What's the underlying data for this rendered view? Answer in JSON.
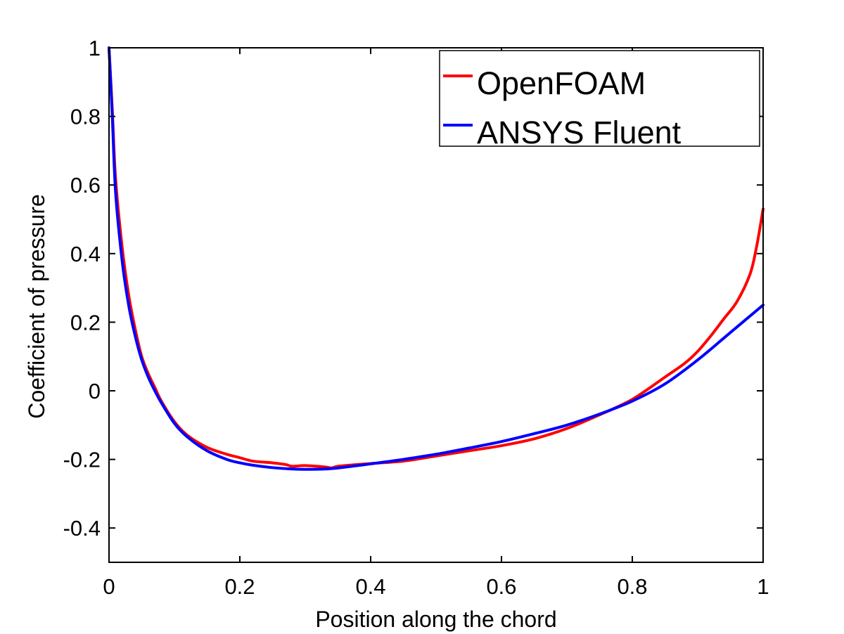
{
  "chart_data": {
    "type": "line",
    "xlabel": "Position along the chord",
    "ylabel": "Coefficient of pressure",
    "xlim": [
      0,
      1
    ],
    "ylim": [
      -0.5,
      1
    ],
    "x_ticks": [
      0,
      0.2,
      0.4,
      0.6,
      0.8,
      1
    ],
    "x_tick_labels": [
      "0",
      "0.2",
      "0.4",
      "0.6",
      "0.8",
      "1"
    ],
    "y_ticks": [
      -0.4,
      -0.2,
      0,
      0.2,
      0.4,
      0.6,
      0.8,
      1
    ],
    "y_tick_labels": [
      "-0.4",
      "-0.2",
      "0",
      "0.2",
      "0.4",
      "0.6",
      "0.8",
      "1"
    ],
    "grid": false,
    "legend_position": "top-right",
    "series": [
      {
        "name": "OpenFOAM",
        "color": "#ff0000",
        "x": [
          0,
          0.005,
          0.01,
          0.02,
          0.03,
          0.04,
          0.05,
          0.06,
          0.07,
          0.08,
          0.1,
          0.12,
          0.15,
          0.18,
          0.2,
          0.22,
          0.25,
          0.27,
          0.28,
          0.3,
          0.33,
          0.34,
          0.35,
          0.38,
          0.4,
          0.45,
          0.5,
          0.55,
          0.6,
          0.65,
          0.7,
          0.75,
          0.8,
          0.85,
          0.88,
          0.9,
          0.92,
          0.94,
          0.96,
          0.98,
          0.99,
          1.0
        ],
        "y": [
          1.0,
          0.82,
          0.62,
          0.42,
          0.28,
          0.18,
          0.1,
          0.05,
          0.01,
          -0.03,
          -0.09,
          -0.13,
          -0.165,
          -0.185,
          -0.195,
          -0.205,
          -0.21,
          -0.215,
          -0.22,
          -0.218,
          -0.222,
          -0.225,
          -0.22,
          -0.215,
          -0.212,
          -0.205,
          -0.19,
          -0.175,
          -0.16,
          -0.14,
          -0.11,
          -0.07,
          -0.025,
          0.04,
          0.08,
          0.115,
          0.16,
          0.21,
          0.26,
          0.34,
          0.42,
          0.53
        ]
      },
      {
        "name": "ANSYS Fluent",
        "color": "#0000ff",
        "x": [
          0,
          0.005,
          0.01,
          0.02,
          0.03,
          0.04,
          0.05,
          0.06,
          0.07,
          0.08,
          0.1,
          0.12,
          0.15,
          0.18,
          0.2,
          0.22,
          0.25,
          0.28,
          0.3,
          0.33,
          0.35,
          0.38,
          0.4,
          0.45,
          0.5,
          0.55,
          0.6,
          0.65,
          0.7,
          0.75,
          0.8,
          0.85,
          0.9,
          0.95,
          1.0
        ],
        "y": [
          1.0,
          0.8,
          0.58,
          0.38,
          0.25,
          0.16,
          0.09,
          0.04,
          0.0,
          -0.035,
          -0.095,
          -0.135,
          -0.175,
          -0.2,
          -0.21,
          -0.217,
          -0.224,
          -0.228,
          -0.229,
          -0.228,
          -0.225,
          -0.218,
          -0.213,
          -0.2,
          -0.185,
          -0.167,
          -0.148,
          -0.125,
          -0.1,
          -0.068,
          -0.03,
          0.02,
          0.09,
          0.17,
          0.25
        ]
      }
    ]
  }
}
